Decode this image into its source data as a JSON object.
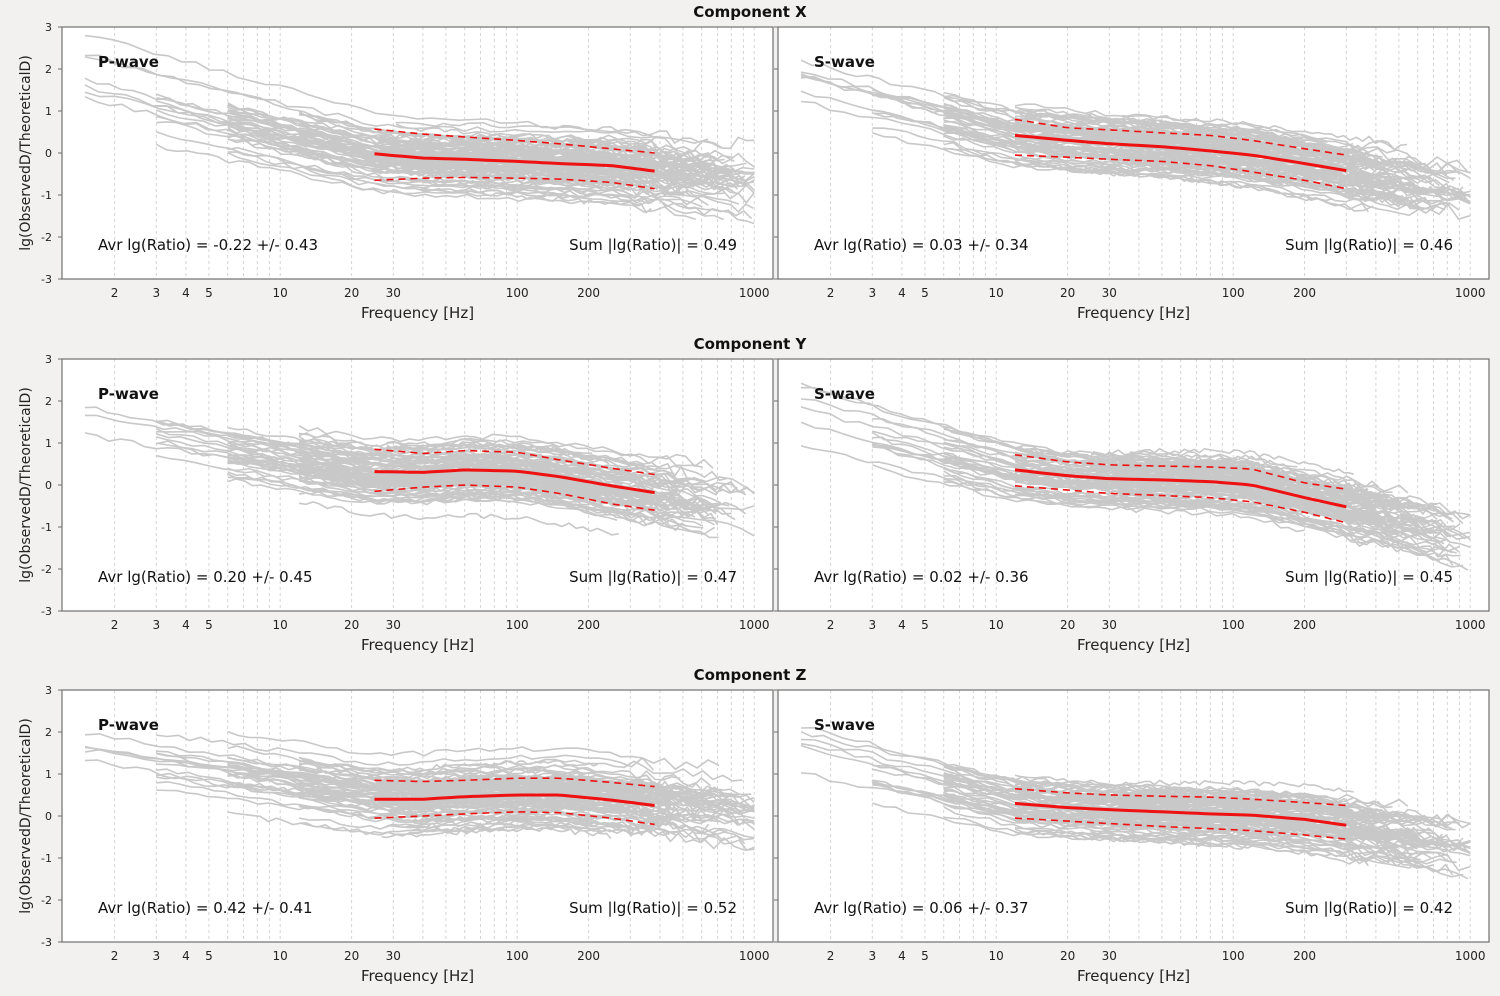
{
  "figure": {
    "components": [
      {
        "title": "Component X"
      },
      {
        "title": "Component Y"
      },
      {
        "title": "Component Z"
      }
    ],
    "ylabel": "lg(ObservedD/TheoreticalD)",
    "xlabel": "Frequency [Hz]",
    "xticks": [
      2,
      3,
      4,
      5,
      10,
      20,
      30,
      100,
      200,
      1000
    ],
    "yticks": [
      -3,
      -2,
      -1,
      0,
      1,
      2,
      3
    ]
  },
  "colors": {
    "background": "#f2f1f0",
    "plot_bg": "#ffffff",
    "traces": "#c8c8c8",
    "mean": "#ee1111",
    "std": "#ee1111",
    "frame": "#707070"
  },
  "chart_data": [
    {
      "type": "line",
      "component": "X",
      "panel": "P-wave",
      "xlabel": "Frequency [Hz]",
      "ylabel": "lg(ObservedD/TheoreticalD)",
      "xscale": "log",
      "xlim": [
        1.2,
        1200
      ],
      "ylim": [
        -3,
        3
      ],
      "grid": "vertical dashed",
      "avr_text": "Avr lg(Ratio) =  -0.22 +/-  0.43",
      "sum_text": "Sum |lg(Ratio)| =  0.49",
      "mean_start": 25,
      "mean_end": 380,
      "mean": {
        "x": [
          25,
          40,
          60,
          100,
          150,
          250,
          380
        ],
        "y": [
          -0.02,
          -0.12,
          -0.15,
          -0.2,
          -0.25,
          -0.3,
          -0.43
        ]
      },
      "upper": {
        "x": [
          25,
          40,
          60,
          100,
          150,
          250,
          380
        ],
        "y": [
          0.57,
          0.45,
          0.38,
          0.3,
          0.22,
          0.1,
          0.0
        ]
      },
      "lower": {
        "x": [
          25,
          40,
          60,
          100,
          150,
          250,
          380
        ],
        "y": [
          -0.65,
          -0.6,
          -0.58,
          -0.6,
          -0.62,
          -0.7,
          -0.85
        ]
      }
    },
    {
      "type": "line",
      "component": "X",
      "panel": "S-wave",
      "xlabel": "Frequency [Hz]",
      "ylabel": "lg(ObservedD/TheoreticalD)",
      "xscale": "log",
      "xlim": [
        1.2,
        1200
      ],
      "ylim": [
        -3,
        3
      ],
      "grid": "vertical dashed",
      "avr_text": "Avr lg(Ratio) =  0.03 +/-  0.34",
      "sum_text": "Sum |lg(Ratio)| =  0.46",
      "mean_start": 12,
      "mean_end": 300,
      "mean": {
        "x": [
          12,
          20,
          30,
          50,
          80,
          120,
          200,
          300
        ],
        "y": [
          0.42,
          0.3,
          0.22,
          0.15,
          0.05,
          -0.05,
          -0.25,
          -0.42
        ]
      },
      "upper": {
        "x": [
          12,
          20,
          30,
          50,
          80,
          120,
          200,
          300
        ],
        "y": [
          0.8,
          0.6,
          0.55,
          0.48,
          0.42,
          0.3,
          0.1,
          -0.05
        ]
      },
      "lower": {
        "x": [
          12,
          20,
          30,
          50,
          80,
          120,
          200,
          300
        ],
        "y": [
          -0.05,
          -0.1,
          -0.15,
          -0.2,
          -0.3,
          -0.45,
          -0.65,
          -0.85
        ]
      }
    },
    {
      "type": "line",
      "component": "Y",
      "panel": "P-wave",
      "xlabel": "Frequency [Hz]",
      "ylabel": "lg(ObservedD/TheoreticalD)",
      "xscale": "log",
      "xlim": [
        1.2,
        1200
      ],
      "ylim": [
        -3,
        3
      ],
      "grid": "vertical dashed",
      "avr_text": "Avr lg(Ratio) =  0.20 +/-  0.45",
      "sum_text": "Sum |lg(Ratio)| =  0.47",
      "mean_start": 25,
      "mean_end": 380,
      "mean": {
        "x": [
          25,
          40,
          60,
          100,
          150,
          250,
          380
        ],
        "y": [
          0.32,
          0.3,
          0.36,
          0.33,
          0.2,
          -0.02,
          -0.18
        ]
      },
      "upper": {
        "x": [
          25,
          40,
          60,
          100,
          150,
          250,
          380
        ],
        "y": [
          0.85,
          0.75,
          0.82,
          0.78,
          0.6,
          0.4,
          0.25
        ]
      },
      "lower": {
        "x": [
          25,
          40,
          60,
          100,
          150,
          250,
          380
        ],
        "y": [
          -0.15,
          -0.05,
          0.0,
          -0.05,
          -0.2,
          -0.45,
          -0.6
        ]
      }
    },
    {
      "type": "line",
      "component": "Y",
      "panel": "S-wave",
      "xlabel": "Frequency [Hz]",
      "ylabel": "lg(ObservedD/TheoreticalD)",
      "xscale": "log",
      "xlim": [
        1.2,
        1200
      ],
      "ylim": [
        -3,
        3
      ],
      "grid": "vertical dashed",
      "avr_text": "Avr lg(Ratio) =  0.02 +/-  0.36",
      "sum_text": "Sum |lg(Ratio)| =  0.45",
      "mean_start": 12,
      "mean_end": 300,
      "mean": {
        "x": [
          12,
          20,
          30,
          50,
          80,
          120,
          200,
          300
        ],
        "y": [
          0.36,
          0.22,
          0.15,
          0.12,
          0.08,
          0.0,
          -0.3,
          -0.52
        ]
      },
      "upper": {
        "x": [
          12,
          20,
          30,
          50,
          80,
          120,
          200,
          300
        ],
        "y": [
          0.72,
          0.55,
          0.48,
          0.45,
          0.43,
          0.38,
          0.05,
          -0.1
        ]
      },
      "lower": {
        "x": [
          12,
          20,
          30,
          50,
          80,
          120,
          200,
          300
        ],
        "y": [
          -0.02,
          -0.12,
          -0.2,
          -0.25,
          -0.3,
          -0.4,
          -0.65,
          -0.9
        ]
      }
    },
    {
      "type": "line",
      "component": "Z",
      "panel": "P-wave",
      "xlabel": "Frequency [Hz]",
      "ylabel": "lg(ObservedD/TheoreticalD)",
      "xscale": "log",
      "xlim": [
        1.2,
        1200
      ],
      "ylim": [
        -3,
        3
      ],
      "grid": "vertical dashed",
      "avr_text": "Avr lg(Ratio) =  0.42 +/-  0.41",
      "sum_text": "Sum |lg(Ratio)| =  0.52",
      "mean_start": 25,
      "mean_end": 380,
      "mean": {
        "x": [
          25,
          40,
          60,
          100,
          150,
          250,
          380
        ],
        "y": [
          0.4,
          0.4,
          0.46,
          0.5,
          0.5,
          0.38,
          0.25
        ]
      },
      "upper": {
        "x": [
          25,
          40,
          60,
          100,
          150,
          250,
          380
        ],
        "y": [
          0.85,
          0.82,
          0.85,
          0.9,
          0.9,
          0.8,
          0.7
        ]
      },
      "lower": {
        "x": [
          25,
          40,
          60,
          100,
          150,
          250,
          380
        ],
        "y": [
          -0.05,
          0.0,
          0.05,
          0.1,
          0.08,
          -0.05,
          -0.2
        ]
      }
    },
    {
      "type": "line",
      "component": "Z",
      "panel": "S-wave",
      "xlabel": "Frequency [Hz]",
      "ylabel": "lg(ObservedD/TheoreticalD)",
      "xscale": "log",
      "xlim": [
        1.2,
        1200
      ],
      "ylim": [
        -3,
        3
      ],
      "grid": "vertical dashed",
      "avr_text": "Avr lg(Ratio) =  0.06 +/-  0.37",
      "sum_text": "Sum |lg(Ratio)| =  0.42",
      "mean_start": 12,
      "mean_end": 300,
      "mean": {
        "x": [
          12,
          20,
          30,
          50,
          80,
          120,
          200,
          300
        ],
        "y": [
          0.3,
          0.2,
          0.15,
          0.1,
          0.05,
          0.02,
          -0.08,
          -0.22
        ]
      },
      "upper": {
        "x": [
          12,
          20,
          30,
          50,
          80,
          120,
          200,
          300
        ],
        "y": [
          0.65,
          0.55,
          0.5,
          0.47,
          0.45,
          0.4,
          0.32,
          0.25
        ]
      },
      "lower": {
        "x": [
          12,
          20,
          30,
          50,
          80,
          120,
          200,
          300
        ],
        "y": [
          -0.05,
          -0.12,
          -0.18,
          -0.25,
          -0.3,
          -0.35,
          -0.45,
          -0.55
        ]
      }
    }
  ]
}
